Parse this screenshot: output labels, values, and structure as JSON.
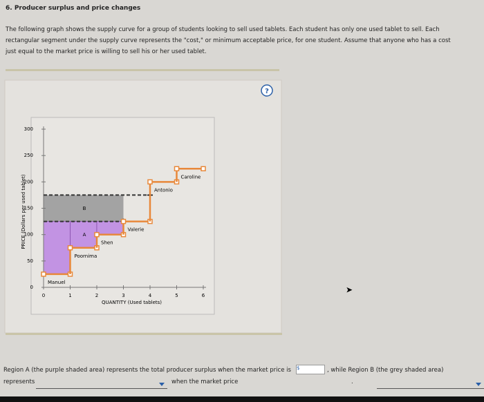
{
  "header": {
    "title": "6. Producer surplus and price changes"
  },
  "intro": [
    "The following graph shows the supply curve for a group of students looking to sell used tablets. Each student has only one used tablet to sell. Each",
    "rectangular segment under the supply curve represents the \"cost,\" or minimum acceptable price, for one student. Assume that anyone who has a cost",
    "just equal to the market price is willing to sell his or her used tablet."
  ],
  "help": "?",
  "chart_data": {
    "type": "step",
    "xlabel": "QUANTITY (Used tablets)",
    "ylabel": "PRICE (Dollars per used tablet)",
    "categories": [
      "Manuel",
      "Poornima",
      "Shen",
      "Valerie",
      "Antonio",
      "Caroline"
    ],
    "values": [
      25,
      75,
      100,
      125,
      200,
      225
    ],
    "color": "#e8883a",
    "xlim": [
      0,
      6
    ],
    "ylim": [
      0,
      300
    ],
    "xticks": [
      0,
      1,
      2,
      3,
      4,
      5,
      6
    ],
    "yticks": [
      0,
      50,
      100,
      150,
      200,
      250,
      300
    ],
    "reference_lines": [
      125,
      175
    ],
    "regions": [
      {
        "label": "A",
        "color": "#c293e3"
      },
      {
        "label": "B",
        "color": "#a3a3a3"
      }
    ]
  },
  "question": {
    "part1": "Region A (the purple shaded area) represents the total producer surplus when the market price is",
    "currency": "$",
    "part2": ", while Region B (the grey shaded area)",
    "part3": "represents",
    "part4": "when the market price",
    "end": "."
  }
}
